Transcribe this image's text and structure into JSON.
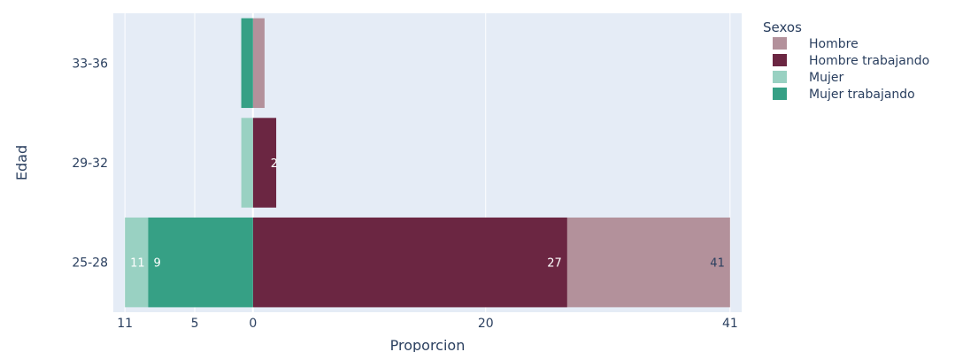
{
  "chart_data": {
    "type": "bar",
    "orientation": "horizontal",
    "barmode": "overlay",
    "categories": [
      "25-28",
      "29-32",
      "33-36"
    ],
    "xlabel": "Proporcion",
    "ylabel": "Edad",
    "xlim": [
      -12,
      42
    ],
    "xtick_values": [
      -11,
      -5,
      0,
      20,
      41
    ],
    "xtick_labels": [
      "11",
      "5",
      "0",
      "20",
      "41"
    ],
    "grid": true,
    "legend": {
      "title": "Sexos",
      "position": "top-right"
    },
    "series": [
      {
        "name": "Hombre",
        "color": "#b3919b",
        "values": [
          41,
          0,
          1
        ],
        "labels": [
          "41",
          "",
          ""
        ]
      },
      {
        "name": "Hombre trabajando",
        "color": "#6b2642",
        "values": [
          27,
          2,
          0
        ],
        "labels": [
          "27",
          "2",
          ""
        ]
      },
      {
        "name": "Mujer",
        "color": "#99d1c2",
        "values": [
          -11,
          -1,
          -1
        ],
        "labels": [
          "11",
          "",
          ""
        ]
      },
      {
        "name": "Mujer trabajando",
        "color": "#36a085",
        "values": [
          -9,
          0,
          -1
        ],
        "labels": [
          "9",
          "",
          ""
        ]
      }
    ]
  }
}
